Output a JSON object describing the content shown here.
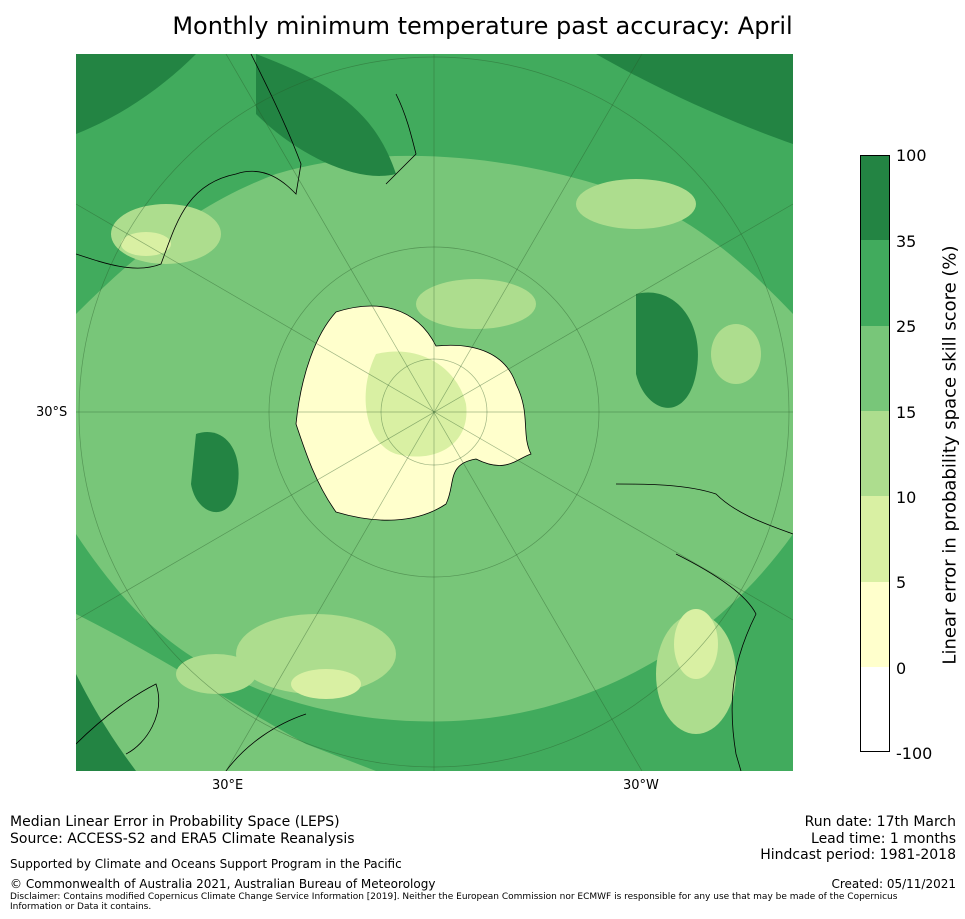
{
  "title": "Monthly minimum temperature past accuracy: April",
  "axis_labels": {
    "lat": "30°S",
    "lon_left": "30°E",
    "lon_right": "30°W"
  },
  "colorbar": {
    "label": "Linear error in probability space skill score (%)",
    "ticks": [
      "100",
      "35",
      "25",
      "15",
      "10",
      "5",
      "0",
      "-100"
    ],
    "bins": [
      {
        "range": "35-100",
        "color": "#238443"
      },
      {
        "range": "25-35",
        "color": "#41ab5d"
      },
      {
        "range": "15-25",
        "color": "#78c679"
      },
      {
        "range": "10-15",
        "color": "#addd8e"
      },
      {
        "range": "5-10",
        "color": "#d9f0a3"
      },
      {
        "range": "0-5",
        "color": "#ffffcc"
      },
      {
        "range": "-100-0",
        "color": "#ffffff"
      }
    ]
  },
  "footer": {
    "line1": "Median Linear Error in Probability Space (LEPS)",
    "line2": "Source: ACCESS-S2 and ERA5 Climate Reanalysis",
    "support": "Supported by Climate and Oceans Support Program in the Pacific",
    "copyright": "© Commonwealth of Australia 2021, Australian Bureau of Meteorology",
    "disclaimer": "Disclaimer: Contains modified Copernicus Climate Change Service Information [2019]. Neither the European Commission nor ECMWF is responsible for any use that may be made of the Copernicus Information or Data it contains.",
    "run_date": "Run date: 17th March",
    "lead_time": "Lead time: 1 months",
    "hindcast": "Hindcast period: 1981-2018",
    "created": "Created: 05/11/2021"
  }
}
